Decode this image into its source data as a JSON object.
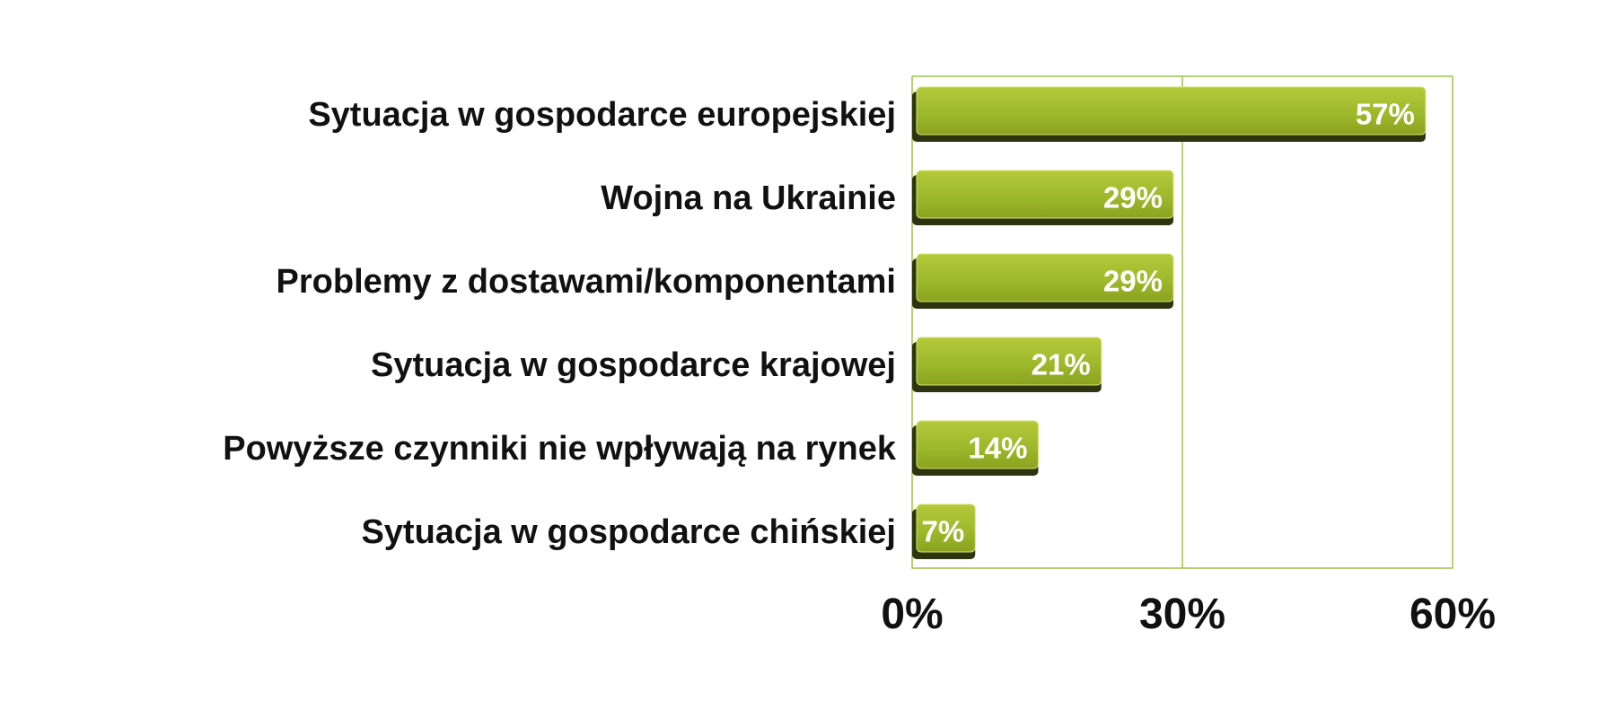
{
  "chart_data": {
    "type": "bar",
    "orientation": "horizontal",
    "categories": [
      "Sytuacja w gospodarce europejskiej",
      "Wojna na Ukrainie",
      "Problemy z dostawami/komponentami",
      "Sytuacja w gospodarce krajowej",
      "Powyższe czynniki nie wpływają na rynek",
      "Sytuacja w gospodarce chińskiej"
    ],
    "values": [
      57,
      29,
      29,
      21,
      14,
      7
    ],
    "data_labels": [
      "57%",
      "29%",
      "29%",
      "21%",
      "14%",
      "7%"
    ],
    "xlim": [
      0,
      60
    ],
    "x_ticks": [
      0,
      30,
      60
    ],
    "x_tick_labels": [
      "0%",
      "30%",
      "60%"
    ],
    "grid": true,
    "legend": "none",
    "colors": {
      "bar_top": "#b3c93a",
      "bar_mid": "#9fb92c",
      "bar_bottom": "#8aa21f",
      "bar_shadow": "#2e3410",
      "bar_edge": "#d7e36f",
      "frame": "#9ec44a"
    }
  }
}
